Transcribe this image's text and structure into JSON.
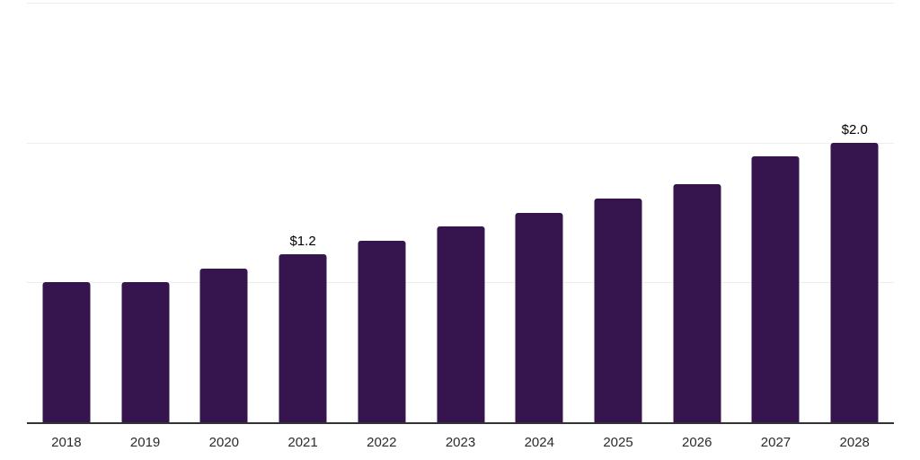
{
  "page": {
    "background_color": "#ffffff"
  },
  "chart_data": {
    "type": "bar",
    "title": "",
    "xlabel": "",
    "ylabel": "",
    "categories": [
      "2018",
      "2019",
      "2020",
      "2021",
      "2022",
      "2023",
      "2024",
      "2025",
      "2026",
      "2027",
      "2028"
    ],
    "values": [
      1.0,
      1.0,
      1.1,
      1.2,
      1.3,
      1.4,
      1.5,
      1.6,
      1.7,
      1.9,
      2.0
    ],
    "data_labels": [
      "",
      "",
      "",
      "$1.2",
      "",
      "",
      "",
      "",
      "",
      "",
      "$2.0"
    ],
    "ylim": [
      0,
      3
    ],
    "gridline_values": [
      1,
      2,
      3
    ],
    "grid": "horizontal-only",
    "legend_position": "none",
    "y_axis_tick_labels_visible": false,
    "colors": {
      "bar": "#36154E",
      "gridline": "#ededed",
      "axis_line": "#333333",
      "data_label": "#000000",
      "tick_label": "#2b2b2b"
    }
  }
}
